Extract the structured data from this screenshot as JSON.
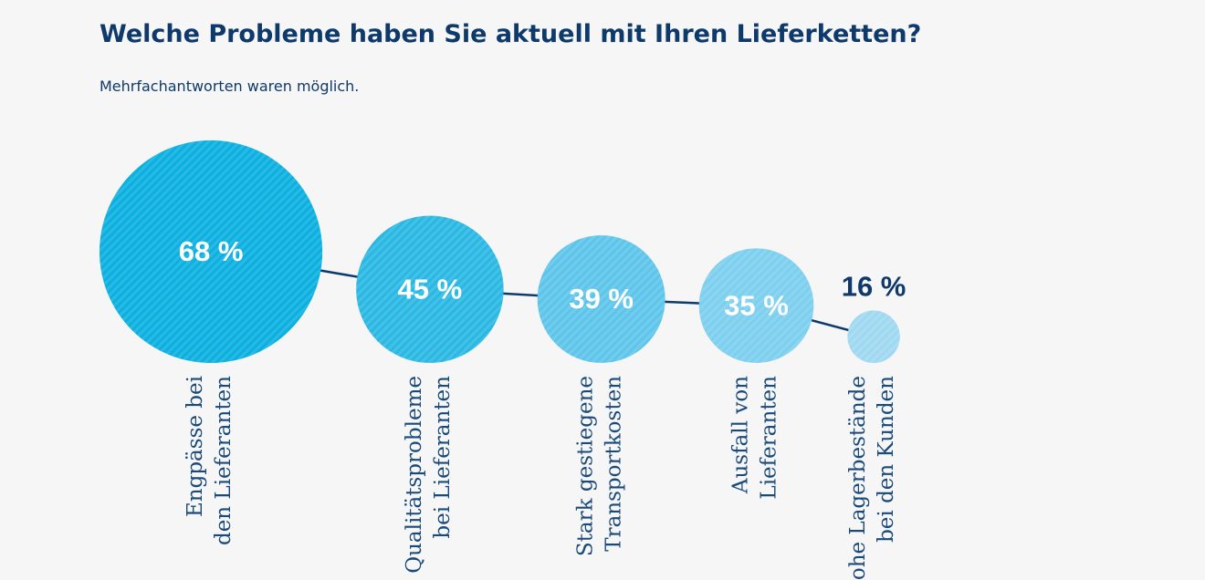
{
  "chart_data": {
    "type": "bubble",
    "title": "Welche Probleme haben Sie aktuell mit Ihren Lieferketten?",
    "subtitle": "Mehrfachantworten waren möglich.",
    "categories": [
      [
        "Engpässe bei",
        "den Lieferanten"
      ],
      [
        "Qualitätsprobleme",
        "bei Lieferanten"
      ],
      [
        "Stark gestiegene",
        "Transportkosten"
      ],
      [
        "Ausfall von",
        "Lieferanten"
      ],
      [
        "Hohe Lagerbestände",
        "bei den Kunden"
      ]
    ],
    "values": [
      68,
      45,
      39,
      35,
      16
    ],
    "value_labels": [
      "68 %",
      "45 %",
      "39 %",
      "35 %",
      "16 %"
    ],
    "colors": [
      "#0bb0e0",
      "#2ab8e3",
      "#5ec5ea",
      "#7ccfee",
      "#9fd8f1"
    ],
    "line_color": "#0e3a6b"
  }
}
